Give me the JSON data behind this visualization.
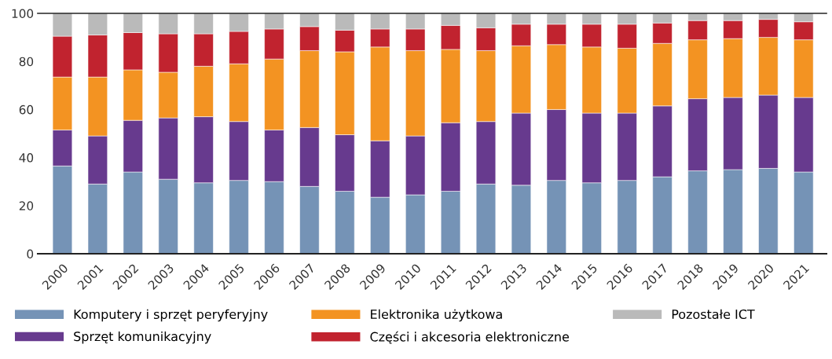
{
  "chart_data": {
    "type": "bar",
    "stacked": true,
    "categories": [
      "2000",
      "2001",
      "2002",
      "2003",
      "2004",
      "2005",
      "2006",
      "2007",
      "2008",
      "2009",
      "2010",
      "2011",
      "2012",
      "2013",
      "2014",
      "2015",
      "2016",
      "2017",
      "2018",
      "2019",
      "2020",
      "2021"
    ],
    "ylim": [
      0,
      100
    ],
    "yticks": [
      0,
      20,
      40,
      60,
      80,
      100
    ],
    "grid": false,
    "legend": "bottom",
    "series": [
      {
        "name": "Komputery i sprzęt peryferyjny",
        "color": "#7593b6",
        "values": [
          36.5,
          29,
          34,
          31,
          29.5,
          30.5,
          30,
          28,
          26,
          23.5,
          24.5,
          26,
          29,
          28.5,
          30.5,
          29.5,
          30.5,
          32,
          34.5,
          35,
          35.5,
          34
        ]
      },
      {
        "name": "Sprzęt komunikacyjny",
        "color": "#673a8e",
        "values": [
          15,
          20,
          21.5,
          25.5,
          27.5,
          24.5,
          21.5,
          24.5,
          23.5,
          23.5,
          24.5,
          28.5,
          26,
          30,
          29.5,
          29,
          28,
          29.5,
          30,
          30,
          30.5,
          31
        ]
      },
      {
        "name": "Elektronika użytkowa",
        "color": "#f39322",
        "values": [
          22,
          24.5,
          21,
          19,
          21,
          24,
          29.5,
          32,
          34.5,
          39,
          35.5,
          30.5,
          29.5,
          28,
          27,
          27.5,
          27,
          26,
          24.5,
          24.5,
          24,
          24
        ]
      },
      {
        "name": "Części i akcesoria elektroniczne",
        "color": "#c1232f",
        "values": [
          17,
          17.5,
          15.5,
          16,
          13.5,
          13.5,
          12.5,
          10,
          9,
          7.5,
          9,
          10,
          9.5,
          9,
          8.5,
          9.5,
          10,
          8.5,
          8,
          7.5,
          7.5,
          7.5
        ]
      },
      {
        "name": "Pozostałe ICT",
        "color": "#bababa",
        "values": [
          9.5,
          9,
          8,
          8.5,
          8.5,
          7.5,
          6.5,
          5.5,
          7,
          6.5,
          6.5,
          5,
          6,
          4.5,
          4.5,
          4.5,
          4.5,
          4,
          3,
          3,
          2.5,
          3.5
        ]
      }
    ]
  }
}
